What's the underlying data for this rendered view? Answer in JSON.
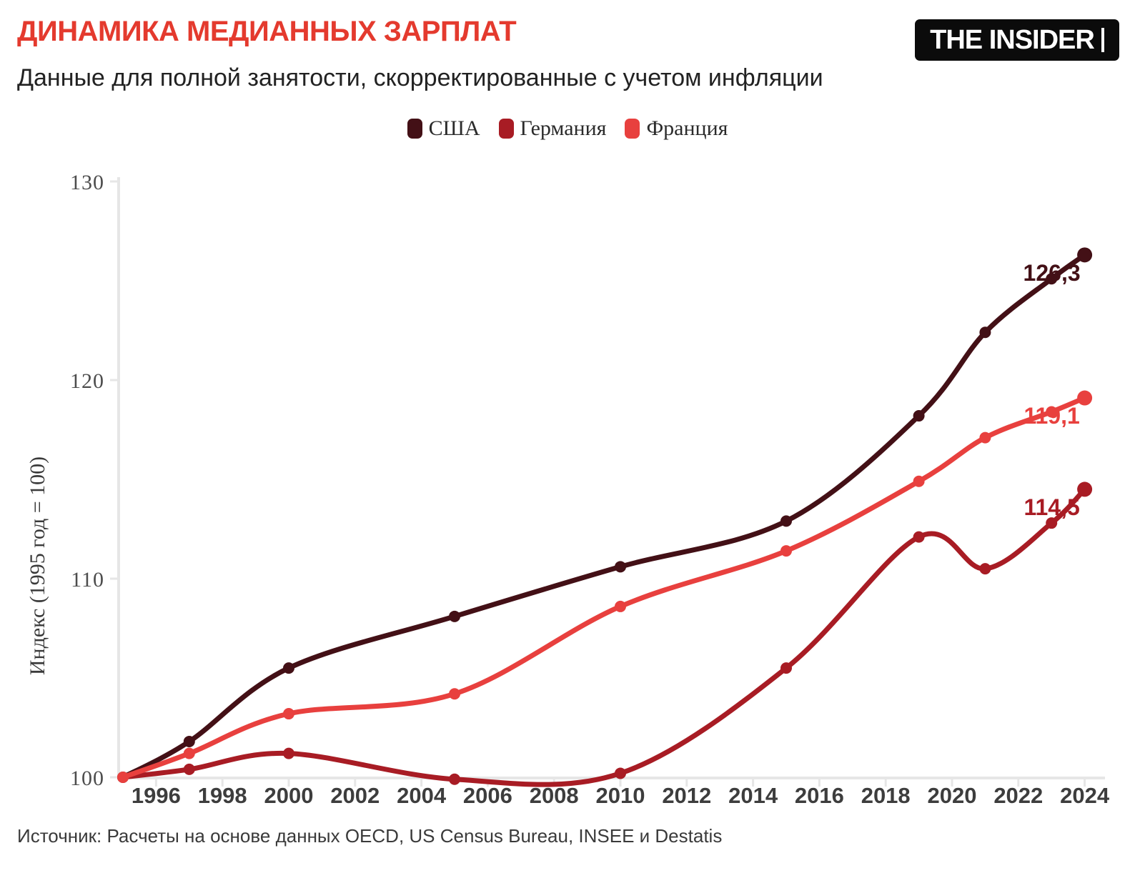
{
  "header": {
    "title": "ДИНАМИКА МЕДИАННЫХ ЗАРПЛАТ",
    "subtitle": "Данные для полной занятости, скорректированные с учетом инфляции",
    "logo_text": "THE INSIDER"
  },
  "source": "Источник: Расчеты на основе данных OECD, US Census Bureau, INSEE и Destatis",
  "colors": {
    "title_red": "#e43a2e",
    "usa": "#431016",
    "germany": "#a81c24",
    "france": "#e8403e",
    "axis": "#e6e6e6",
    "y_tick_label": "#4d4d4d",
    "x_tick_label": "#3d3d3d"
  },
  "legend": {
    "items": [
      {
        "label": "США",
        "color": "#431016"
      },
      {
        "label": "Германия",
        "color": "#a81c24"
      },
      {
        "label": "Франция",
        "color": "#e8403e"
      }
    ]
  },
  "chart_data": {
    "type": "line",
    "title": "ДИНАМИКА МЕДИАННЫХ ЗАРПЛАТ",
    "subtitle": "Данные для полной занятости, скорректированные с учетом инфляции",
    "x": [
      1995,
      1997,
      2000,
      2005,
      2010,
      2015,
      2019,
      2021,
      2023,
      2024
    ],
    "series": [
      {
        "key": "usa",
        "name": "США",
        "color": "#431016",
        "values": [
          100,
          101.8,
          105.5,
          108.1,
          110.6,
          112.9,
          118.2,
          122.4,
          125.1,
          126.3
        ],
        "end_label": "126,3"
      },
      {
        "key": "germany",
        "name": "Германия",
        "color": "#a81c24",
        "values": [
          100,
          100.4,
          101.2,
          99.9,
          100.2,
          105.5,
          112.1,
          110.5,
          112.8,
          114.5
        ],
        "end_label": "114,5"
      },
      {
        "key": "france",
        "name": "Франция",
        "color": "#e8403e",
        "values": [
          100,
          101.2,
          103.2,
          104.2,
          108.6,
          111.4,
          114.9,
          117.1,
          118.4,
          119.1
        ],
        "end_label": "119,1"
      }
    ],
    "xlabel": "",
    "ylabel": "Индекс (1995 год = 100)",
    "yticks": [
      100,
      110,
      120,
      130
    ],
    "xticks": [
      1996,
      1998,
      2000,
      2002,
      2004,
      2006,
      2008,
      2010,
      2012,
      2014,
      2016,
      2018,
      2020,
      2022,
      2024
    ],
    "xlim": [
      1995,
      2024.6
    ],
    "ylim": [
      100,
      130
    ],
    "grid": false,
    "legend_position": "top"
  }
}
